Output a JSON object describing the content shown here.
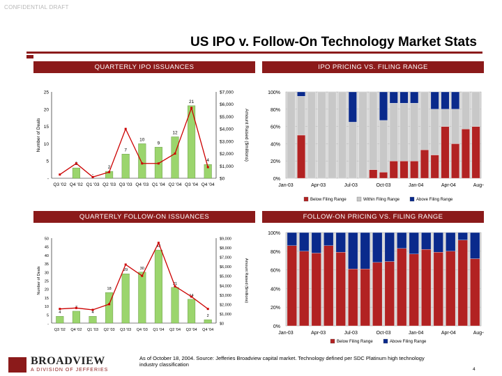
{
  "header": {
    "confidential": "CONFIDENTIAL DRAFT",
    "title": "US IPO v. Follow-On Technology Market Stats"
  },
  "footer": {
    "note": "As of October 18, 2004. Source: Jefferies Broadview capital market. Technology defined per SDC Platinum high technology industry classification",
    "page": "4",
    "logo_word": "BROADVIEW",
    "logo_sub": "A DIVISION OF JEFFERIES"
  },
  "colors": {
    "accent": "#8b1a1a",
    "bar_green": "#9bd56d",
    "line_red": "#cc0000",
    "below": "#b22222",
    "within": "#c8c8c8",
    "above": "#0a2a8c"
  },
  "chart_data": [
    {
      "id": "ipo-issuances",
      "type": "bar",
      "title": "QUARTERLY IPO ISSUANCES",
      "ylabel": "Number of Deals",
      "y2label": "Amount Raised ($millions)",
      "categories": [
        "Q3 '02",
        "Q4 '02",
        "Q1 '03",
        "Q2 '03",
        "Q3 '03",
        "Q4 '03",
        "Q1 '04",
        "Q2 '04",
        "Q3 '04",
        "Q4 '04"
      ],
      "values": [
        0,
        3,
        0,
        2,
        7,
        10,
        9,
        12,
        21,
        4
      ],
      "value_labels": [
        "-",
        "3",
        "-",
        "2",
        "7",
        "10",
        "9",
        "12",
        "21",
        "4"
      ],
      "line_values": [
        300,
        1200,
        100,
        500,
        4000,
        1200,
        1200,
        2000,
        5700,
        900
      ],
      "ylim": [
        0,
        25
      ],
      "yticks": [
        "-",
        "5",
        "10",
        "15",
        "20",
        "25"
      ],
      "y2lim": [
        0,
        7000
      ],
      "y2ticks": [
        "$0",
        "$1,000",
        "$2,000",
        "$3,000",
        "$4,000",
        "$5,000",
        "$6,000",
        "$7,000"
      ]
    },
    {
      "id": "ipo-pricing",
      "type": "bar",
      "stacked": true,
      "title": "IPO PRICING VS. FILING RANGE",
      "yticks": [
        "0%",
        "20%",
        "40%",
        "60%",
        "80%",
        "100%"
      ],
      "xticks": [
        "Jan-03",
        "Apr-03",
        "Jul-03",
        "Oct-03",
        "Jan-04",
        "Apr-04",
        "Aug-04"
      ],
      "legend": [
        "Below Filing Range",
        "Within Filing Range",
        "Above Filing Range"
      ],
      "series": [
        {
          "name": "Below Filing Range",
          "values": [
            0,
            50,
            0,
            0,
            0,
            0,
            0,
            0,
            10,
            7,
            20,
            20,
            20,
            33,
            27,
            60,
            40,
            57,
            60
          ]
        },
        {
          "name": "Within Filing Range",
          "values": [
            100,
            45,
            100,
            100,
            100,
            100,
            65,
            100,
            90,
            60,
            67,
            67,
            67,
            67,
            53,
            20,
            40,
            43,
            40
          ]
        },
        {
          "name": "Above Filing Range",
          "values": [
            0,
            5,
            0,
            0,
            0,
            0,
            35,
            0,
            0,
            33,
            13,
            13,
            13,
            0,
            20,
            20,
            20,
            0,
            0
          ]
        }
      ]
    },
    {
      "id": "follow-on-issuances",
      "type": "bar",
      "title": "QUARTERLY FOLLOW-ON ISSUANCES",
      "ylabel": "Number of Deals",
      "y2label": "Amount Raised ($millions)",
      "categories": [
        "Q3 '02",
        "Q4 '02",
        "Q1 '03",
        "Q2 '03",
        "Q3 '03",
        "Q4 '03",
        "Q1 '04",
        "Q2 '04",
        "Q3 '04",
        "Q4 '04"
      ],
      "values": [
        4,
        7,
        4,
        18,
        29,
        30,
        43,
        21,
        14,
        2
      ],
      "value_labels": [
        "4",
        "7",
        "4",
        "18",
        "29",
        "30",
        "43",
        "21",
        "14",
        "2"
      ],
      "line_values": [
        1500,
        1600,
        1400,
        2000,
        6200,
        5000,
        8500,
        3900,
        2800,
        1500
      ],
      "ylim": [
        0,
        50
      ],
      "yticks": [
        "-",
        "5",
        "10",
        "15",
        "20",
        "25",
        "30",
        "35",
        "40",
        "45",
        "50"
      ],
      "y2lim": [
        0,
        9000
      ],
      "y2ticks": [
        "$0",
        "$1,000",
        "$2,000",
        "$3,000",
        "$4,000",
        "$5,000",
        "$6,000",
        "$7,000",
        "$8,000",
        "$9,000"
      ]
    },
    {
      "id": "follow-on-pricing",
      "type": "bar",
      "stacked": true,
      "title": "FOLLOW-ON PRICING VS. FILING RANGE",
      "yticks": [
        "0%",
        "20%",
        "40%",
        "60%",
        "80%",
        "100%"
      ],
      "xticks": [
        "Jan-03",
        "Apr-03",
        "Jul-03",
        "Oct-03",
        "Jan-04",
        "Apr-04",
        "Aug-04"
      ],
      "legend": [
        "Below Filing Range",
        "Above Filing Range"
      ],
      "series": [
        {
          "name": "Below Filing Range",
          "values": [
            86,
            80,
            78,
            86,
            79,
            61,
            61,
            68,
            69,
            83,
            77,
            82,
            79,
            80,
            92,
            72
          ]
        },
        {
          "name": "Above Filing Range",
          "values": [
            14,
            20,
            22,
            14,
            21,
            39,
            39,
            32,
            31,
            17,
            23,
            18,
            21,
            20,
            8,
            28
          ]
        }
      ]
    }
  ]
}
